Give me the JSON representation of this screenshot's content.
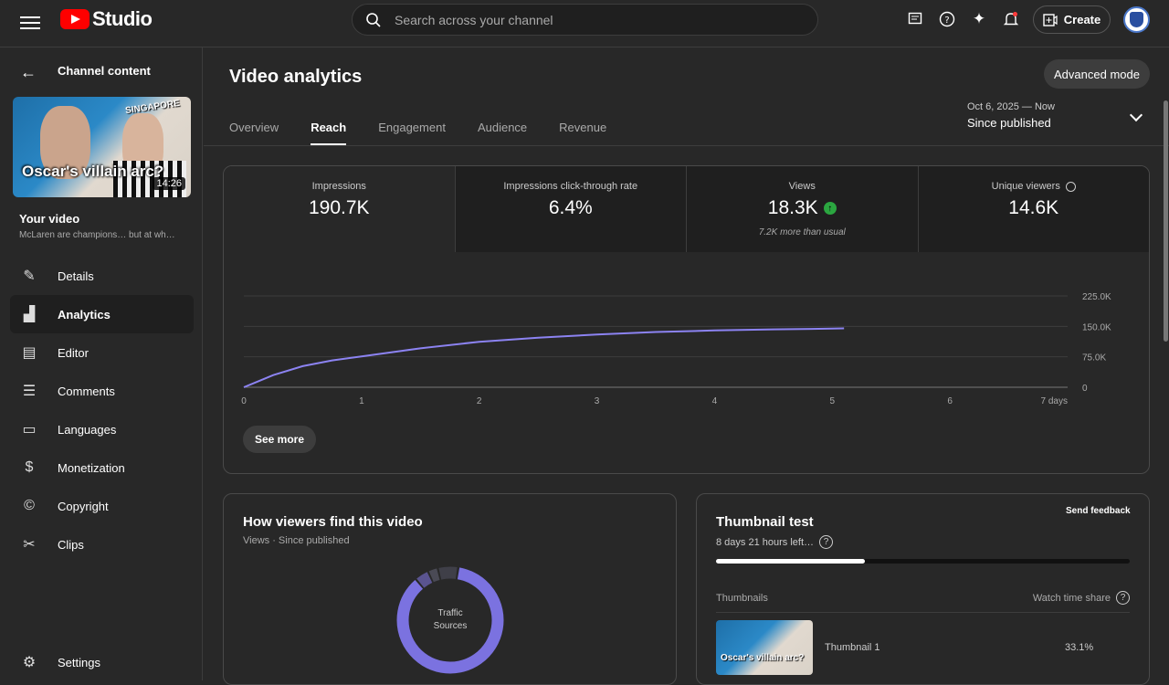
{
  "header": {
    "logo_text": "Studio",
    "search_placeholder": "Search across your channel",
    "create_label": "Create",
    "accent": "#ff0000"
  },
  "sidebar": {
    "back_label": "Channel content",
    "thumbnail": {
      "title": "Oscar's villain arc?",
      "tag": "SINGAPORE",
      "duration": "14:26"
    },
    "your_video_label": "Your video",
    "video_title": "McLaren are champions… but at wh…",
    "items": [
      {
        "label": "Details",
        "icon": "pencil-icon"
      },
      {
        "label": "Analytics",
        "icon": "analytics-icon"
      },
      {
        "label": "Editor",
        "icon": "film-icon"
      },
      {
        "label": "Comments",
        "icon": "comment-icon"
      },
      {
        "label": "Languages",
        "icon": "subtitles-icon"
      },
      {
        "label": "Monetization",
        "icon": "dollar-icon"
      },
      {
        "label": "Copyright",
        "icon": "copyright-icon"
      },
      {
        "label": "Clips",
        "icon": "scissors-icon"
      }
    ],
    "settings_label": "Settings"
  },
  "main": {
    "title": "Video analytics",
    "advanced_mode_label": "Advanced mode",
    "date_range": {
      "range": "Oct 6, 2025 — Now",
      "label": "Since published"
    },
    "tabs": [
      "Overview",
      "Reach",
      "Engagement",
      "Audience",
      "Revenue"
    ],
    "active_tab": "Reach",
    "metrics": [
      {
        "label": "Impressions",
        "value": "190.7K",
        "note": ""
      },
      {
        "label": "Impressions click-through rate",
        "value": "6.4%",
        "note": ""
      },
      {
        "label": "Views",
        "value": "18.3K",
        "note": "7.2K more than usual"
      },
      {
        "label": "Unique viewers",
        "value": "14.6K",
        "note": ""
      }
    ],
    "see_more_label": "See more",
    "traffic": {
      "title": "How viewers find this video",
      "subtitle": "Views · Since published",
      "donut_label_1": "Traffic",
      "donut_label_2": "Sources"
    },
    "thumbnail_test": {
      "title": "Thumbnail test",
      "feedback_label": "Send feedback",
      "time_left": "8 days 21 hours left…",
      "progress": 0.36,
      "col_thumbnails": "Thumbnails",
      "col_share": "Watch time share",
      "rows": [
        {
          "name": "Thumbnail 1",
          "share": "33.1%"
        }
      ]
    }
  },
  "chart_data": {
    "type": "line",
    "x": [
      0,
      0.1,
      0.25,
      0.5,
      0.75,
      1,
      1.5,
      2,
      2.5,
      3,
      3.5,
      4,
      4.5,
      5,
      5.1
    ],
    "series": [
      {
        "values": [
          0,
          12000,
          30000,
          52000,
          66000,
          76000,
          96000,
          112000,
          122000,
          130000,
          136000,
          140000,
          142500,
          144500,
          145000
        ]
      }
    ],
    "xticks": [
      "0",
      "1",
      "2",
      "3",
      "4",
      "5",
      "6",
      "7 days"
    ],
    "yticks": [
      "0",
      "75.0K",
      "150.0K",
      "225.0K"
    ],
    "xlim": [
      0,
      7
    ],
    "ylim": [
      0,
      225000
    ],
    "line_color": "#8c83f2"
  }
}
